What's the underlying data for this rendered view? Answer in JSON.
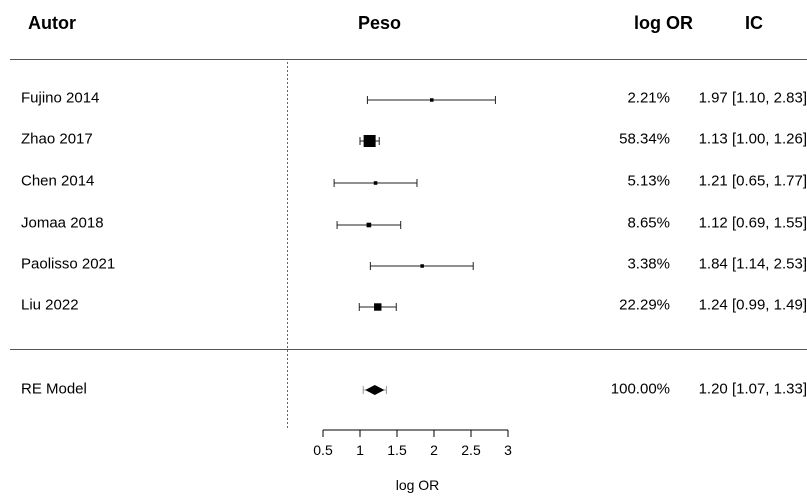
{
  "headers": {
    "author": "Autor",
    "weight": "Peso",
    "logor": "log OR",
    "ic": "IC"
  },
  "chart_data": {
    "type": "forest",
    "xlabel": "log OR",
    "xlim": [
      0.5,
      3
    ],
    "ticks": [
      "0.5",
      "1",
      "1.5",
      "2",
      "2.5",
      "3"
    ],
    "tick_values": [
      0.5,
      1,
      1.5,
      2,
      2.5,
      3
    ],
    "reference_line": 0,
    "studies": [
      {
        "label": "Fujino 2014",
        "estimate": 1.97,
        "lower": 1.1,
        "upper": 2.83,
        "weight": "2.21%",
        "ci_text": "1.97 [1.10, 2.83]"
      },
      {
        "label": "Zhao 2017",
        "estimate": 1.13,
        "lower": 1.0,
        "upper": 1.26,
        "weight": "58.34%",
        "ci_text": "1.13 [1.00, 1.26]"
      },
      {
        "label": "Chen 2014",
        "estimate": 1.21,
        "lower": 0.65,
        "upper": 1.77,
        "weight": "5.13%",
        "ci_text": "1.21 [0.65, 1.77]"
      },
      {
        "label": "Jomaa 2018",
        "estimate": 1.12,
        "lower": 0.69,
        "upper": 1.55,
        "weight": "8.65%",
        "ci_text": "1.12 [0.69, 1.55]"
      },
      {
        "label": "Paolisso 2021",
        "estimate": 1.84,
        "lower": 1.14,
        "upper": 2.53,
        "weight": "3.38%",
        "ci_text": "1.84 [1.14, 2.53]"
      },
      {
        "label": "Liu 2022",
        "estimate": 1.24,
        "lower": 0.99,
        "upper": 1.49,
        "weight": "22.29%",
        "ci_text": "1.24 [0.99, 1.49]"
      }
    ],
    "summary": {
      "label": "RE Model",
      "estimate": 1.2,
      "lower": 1.07,
      "upper": 1.33,
      "weight": "100.00%",
      "ci_text": "1.20 [1.07, 1.33]"
    }
  }
}
